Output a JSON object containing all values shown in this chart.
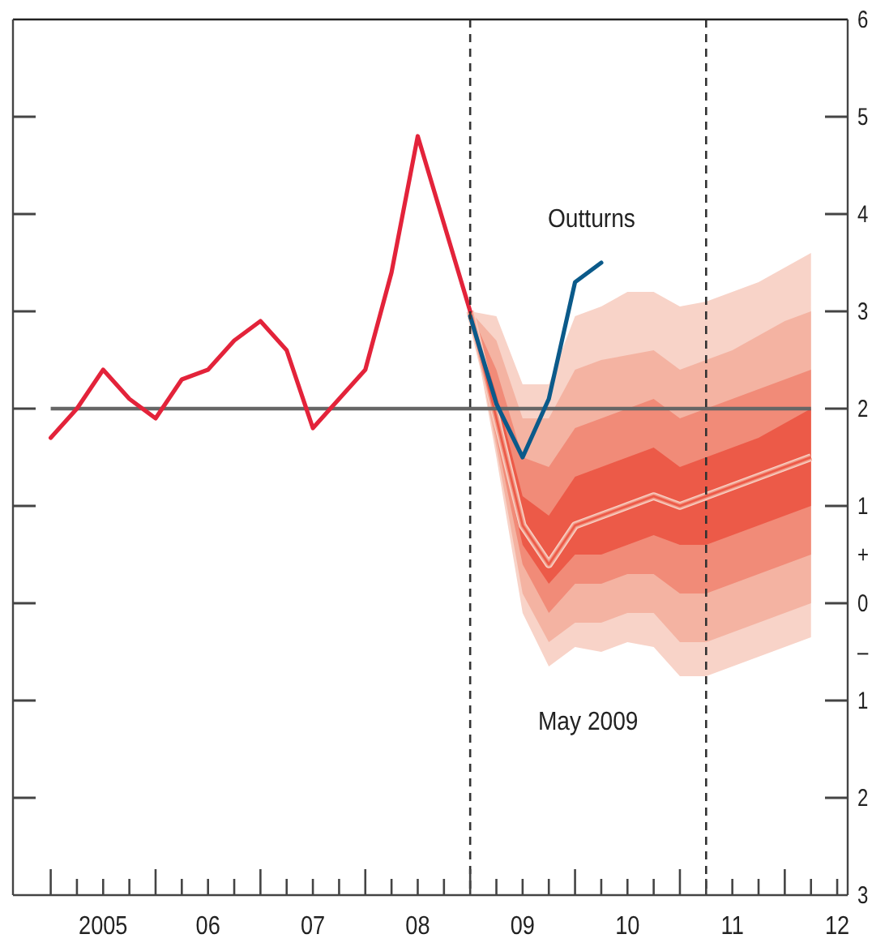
{
  "chart_data": {
    "type": "line",
    "xlim": [
      2004.14,
      2012.1
    ],
    "ylim": [
      -3,
      6
    ],
    "xticks": [
      {
        "value": 2004.5,
        "label": null
      },
      {
        "value": 2004.75,
        "label": null
      },
      {
        "value": 2005,
        "label": "2005"
      },
      {
        "value": 2005.25,
        "label": null
      },
      {
        "value": 2005.5,
        "label": null
      },
      {
        "value": 2005.75,
        "label": null
      },
      {
        "value": 2006,
        "label": "06"
      },
      {
        "value": 2006.25,
        "label": null
      },
      {
        "value": 2006.5,
        "label": null
      },
      {
        "value": 2006.75,
        "label": null
      },
      {
        "value": 2007,
        "label": "07"
      },
      {
        "value": 2007.25,
        "label": null
      },
      {
        "value": 2007.5,
        "label": null
      },
      {
        "value": 2007.75,
        "label": null
      },
      {
        "value": 2008,
        "label": "08"
      },
      {
        "value": 2008.25,
        "label": null
      },
      {
        "value": 2008.5,
        "label": null
      },
      {
        "value": 2008.75,
        "label": null
      },
      {
        "value": 2009,
        "label": "09"
      },
      {
        "value": 2009.25,
        "label": null
      },
      {
        "value": 2009.5,
        "label": null
      },
      {
        "value": 2009.75,
        "label": null
      },
      {
        "value": 2010,
        "label": "10"
      },
      {
        "value": 2010.25,
        "label": null
      },
      {
        "value": 2010.5,
        "label": null
      },
      {
        "value": 2010.75,
        "label": null
      },
      {
        "value": 2011,
        "label": "11"
      },
      {
        "value": 2011.25,
        "label": null
      },
      {
        "value": 2011.5,
        "label": null
      },
      {
        "value": 2011.75,
        "label": null
      },
      {
        "value": 2012,
        "label": "12"
      }
    ],
    "yticks": [
      6,
      5,
      4,
      3,
      2,
      1,
      {
        "value": 0.5,
        "label": "+"
      },
      0,
      {
        "value": -0.5,
        "label": "–"
      },
      {
        "value": -1,
        "label": "1"
      },
      {
        "value": -2,
        "label": "2"
      },
      {
        "value": -3,
        "label": "3"
      }
    ],
    "grid": false,
    "marker": "none",
    "line_style": "solid",
    "ref_lines": [
      {
        "axis": "y",
        "value": 2,
        "color": "#666666",
        "line_style": "solid"
      },
      {
        "axis": "x",
        "value": 2008.5,
        "color": "#333333",
        "line_style": "dashed"
      },
      {
        "axis": "x",
        "value": 2010.75,
        "color": "#333333",
        "line_style": "dashed"
      }
    ],
    "annotations": [
      "May 2009"
    ],
    "series": [
      {
        "type": "line",
        "color": "#f8d3c8",
        "x": [
          2008.5,
          2008.75,
          2009,
          2009.25,
          2009.5,
          2009.75,
          2010,
          2010.25,
          2010.5,
          2010.75,
          2011,
          2011.25,
          2011.5,
          2011.75
        ],
        "values": [
          3.0,
          1.9,
          0.8,
          0.4,
          0.8,
          0.9,
          1.0,
          1.1,
          1.0,
          1.1,
          1.2,
          1.3,
          1.4,
          1.5
        ],
        "upper": [
          3.0,
          2.95,
          2.25,
          2.25,
          2.95,
          3.05,
          3.2,
          3.2,
          3.05,
          3.1,
          3.2,
          3.3,
          3.45,
          3.6
        ],
        "lower": [
          3.0,
          1.5,
          -0.1,
          -0.65,
          -0.45,
          -0.5,
          -0.4,
          -0.45,
          -0.75,
          -0.75,
          -0.65,
          -0.55,
          -0.45,
          -0.35
        ]
      },
      {
        "type": "line",
        "color": "#f4b3a2",
        "x": [
          2008.5,
          2008.75,
          2009,
          2009.25,
          2009.5,
          2009.75,
          2010,
          2010.25,
          2010.5,
          2010.75,
          2011,
          2011.25,
          2011.5,
          2011.75
        ],
        "values": [
          3.0,
          1.9,
          0.8,
          0.4,
          0.8,
          0.9,
          1.0,
          1.1,
          1.0,
          1.1,
          1.2,
          1.3,
          1.4,
          1.5
        ],
        "upper": [
          3.0,
          2.7,
          1.9,
          1.9,
          2.4,
          2.5,
          2.55,
          2.6,
          2.4,
          2.5,
          2.6,
          2.75,
          2.9,
          3.0
        ],
        "lower": [
          3.0,
          1.6,
          0.1,
          -0.4,
          -0.2,
          -0.2,
          -0.1,
          -0.1,
          -0.4,
          -0.4,
          -0.3,
          -0.2,
          -0.1,
          0.0
        ]
      },
      {
        "type": "line",
        "color": "#f18b78",
        "x": [
          2008.5,
          2008.75,
          2009,
          2009.25,
          2009.5,
          2009.75,
          2010,
          2010.25,
          2010.5,
          2010.75,
          2011,
          2011.25,
          2011.5,
          2011.75
        ],
        "values": [
          3.0,
          1.9,
          0.8,
          0.4,
          0.8,
          0.9,
          1.0,
          1.1,
          1.0,
          1.1,
          1.2,
          1.3,
          1.4,
          1.5
        ],
        "upper": [
          3.0,
          2.4,
          1.5,
          1.4,
          1.8,
          1.9,
          2.0,
          2.1,
          1.9,
          2.0,
          2.1,
          2.2,
          2.3,
          2.4
        ],
        "lower": [
          3.0,
          1.7,
          0.4,
          -0.1,
          0.2,
          0.2,
          0.3,
          0.3,
          0.1,
          0.1,
          0.2,
          0.3,
          0.4,
          0.5
        ]
      },
      {
        "type": "line",
        "color": "#ec5a48",
        "x": [
          2008.5,
          2008.75,
          2009,
          2009.25,
          2009.5,
          2009.75,
          2010,
          2010.25,
          2010.5,
          2010.75,
          2011,
          2011.25,
          2011.5,
          2011.75
        ],
        "values": [
          3.0,
          1.9,
          0.8,
          0.4,
          0.8,
          0.9,
          1.0,
          1.1,
          1.0,
          1.1,
          1.2,
          1.3,
          1.4,
          1.5
        ],
        "upper": [
          3.0,
          2.15,
          1.1,
          0.9,
          1.3,
          1.4,
          1.5,
          1.6,
          1.4,
          1.5,
          1.6,
          1.7,
          1.85,
          2.0
        ],
        "lower": [
          3.0,
          1.8,
          0.6,
          0.2,
          0.5,
          0.5,
          0.6,
          0.7,
          0.6,
          0.6,
          0.7,
          0.8,
          0.9,
          1.0
        ]
      },
      {
        "type": "line",
        "color": "#e3233a",
        "x": [
          2004.5,
          2004.75,
          2005,
          2005.25,
          2005.5,
          2005.75,
          2006,
          2006.25,
          2006.5,
          2006.75,
          2007,
          2007.25,
          2007.5,
          2007.75,
          2008,
          2008.25,
          2008.5
        ],
        "values": [
          1.7,
          2.0,
          2.4,
          2.1,
          1.9,
          2.3,
          2.4,
          2.7,
          2.9,
          2.6,
          1.8,
          2.1,
          2.4,
          3.4,
          4.8,
          3.9,
          3.0
        ]
      },
      {
        "type": "line",
        "name": "Outturns",
        "color": "#0b5a8a",
        "x": [
          2008.5,
          2008.75,
          2009,
          2009.25,
          2009.5,
          2009.75
        ],
        "values": [
          2.95,
          2.05,
          1.5,
          2.1,
          3.3,
          3.5
        ]
      }
    ]
  }
}
